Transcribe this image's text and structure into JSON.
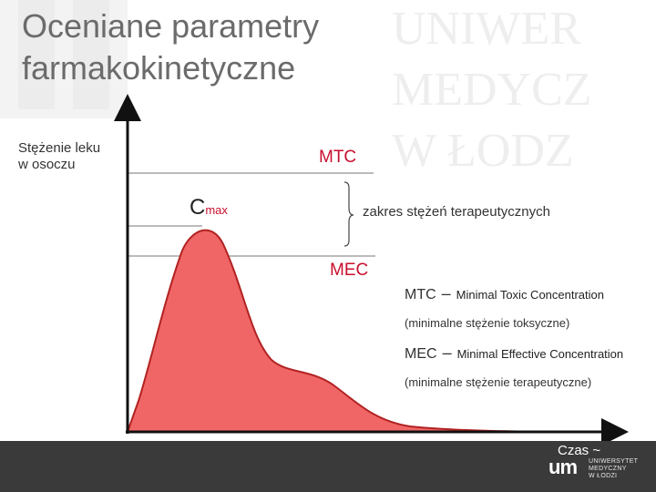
{
  "title": {
    "line1": "Oceniane parametry",
    "line2": "farmakokinetyczne"
  },
  "background_watermark": {
    "lines": [
      "UNIWER",
      "MEDYCZ",
      "W ŁODZ"
    ]
  },
  "diagram": {
    "y_axis_label": {
      "line1": "Stężenie leku",
      "line2": "w osoczu"
    },
    "x_axis_label": "Czas ~",
    "mtc_label": "MTC",
    "mec_label": "MEC",
    "cmax_label": {
      "main": "C",
      "sub": "max"
    },
    "therapeutic_range_label": "zakres stężeń terapeutycznych",
    "curve_color": "#f06666",
    "accent_color": "#c8102e"
  },
  "legend": [
    {
      "abbr": "MTC",
      "dash": "–",
      "full": "Minimal Toxic Concentration",
      "note": "(minimalne stężenie toksyczne)"
    },
    {
      "abbr": "MEC",
      "dash": "–",
      "full": "Minimal Effective Concentration",
      "note": "(minimalne stężenie terapeutyczne)"
    }
  ],
  "footer": {
    "logo_mark": "um",
    "logo_lines": [
      "UNIWERSYTET",
      "MEDYCZNY",
      "W ŁODZI"
    ]
  }
}
